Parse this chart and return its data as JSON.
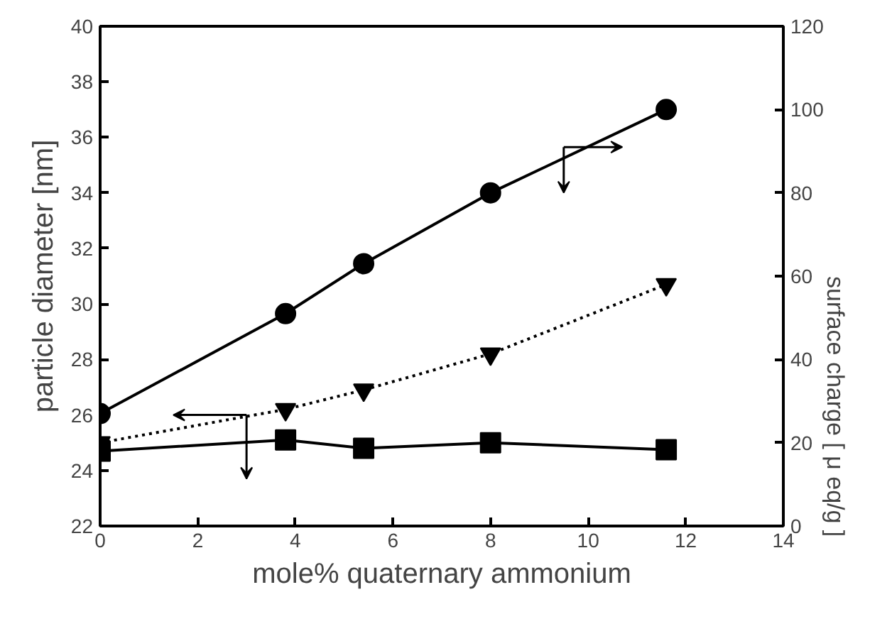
{
  "chart_data": {
    "type": "line",
    "xlabel": "mole% quaternary ammonium",
    "ylabel": "particle diameter [nm]",
    "y2label": "surface charge   [ μ eq/g ]",
    "x": [
      0,
      3.8,
      5.4,
      8,
      11.6
    ],
    "series": [
      {
        "color": "#000000",
        "values": [
          27,
          51,
          63,
          80,
          100
        ],
        "axis": "y2",
        "marker": "circle",
        "line_style": "solid"
      },
      {
        "color": "#000000",
        "values": [
          25.0,
          26.2,
          26.9,
          28.2,
          30.7
        ],
        "marker": "triangle",
        "line_style": "dotted"
      },
      {
        "color": "#000000",
        "values": [
          24.7,
          25.1,
          24.8,
          25.0,
          24.75
        ],
        "marker": "square",
        "line_style": "solid"
      }
    ],
    "xlim": [
      0,
      14
    ],
    "xticks": [
      0,
      2,
      4,
      6,
      8,
      10,
      12,
      14
    ],
    "ylim": [
      22,
      40
    ],
    "yticks": [
      22,
      24,
      26,
      28,
      30,
      32,
      34,
      36,
      38,
      40
    ],
    "y2lim": [
      0,
      120
    ],
    "y2ticks": [
      0,
      20,
      40,
      60,
      80,
      100,
      120
    ],
    "grid": false
  }
}
